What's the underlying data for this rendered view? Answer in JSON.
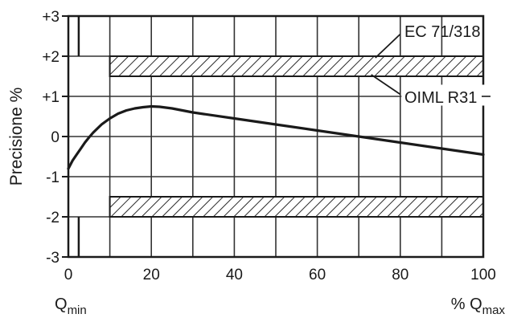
{
  "chart_data": {
    "type": "line",
    "xlabel_left": "Q",
    "xlabel_left_sub": "min",
    "xlabel_right_prefix": "% Q",
    "xlabel_right_sub": "max",
    "ylabel": "Precisione %",
    "xlim": [
      0,
      100
    ],
    "ylim": [
      -3,
      3
    ],
    "xticks": [
      0,
      20,
      40,
      60,
      80,
      100
    ],
    "xtick_labels": [
      "0",
      "20",
      "40",
      "60",
      "80",
      "100"
    ],
    "yticks": [
      3,
      2,
      1,
      0,
      -1,
      -2,
      -3
    ],
    "ytick_labels": [
      "+3",
      "+2",
      "+1",
      "0",
      "-1",
      "-2",
      "-3"
    ],
    "grid": true,
    "series": [
      {
        "x": [
          0,
          1,
          2,
          3,
          4,
          5,
          6,
          8,
          10,
          12,
          14,
          16,
          18,
          20,
          22,
          25,
          30,
          40,
          50,
          60,
          70,
          80,
          90,
          100
        ],
        "y": [
          -0.8,
          -0.6,
          -0.45,
          -0.3,
          -0.15,
          -0.02,
          0.1,
          0.3,
          0.45,
          0.57,
          0.65,
          0.7,
          0.73,
          0.75,
          0.74,
          0.7,
          0.6,
          0.45,
          0.3,
          0.15,
          0.0,
          -0.15,
          -0.3,
          -0.45
        ]
      }
    ],
    "bands": [
      {
        "x": [
          10,
          100
        ],
        "y": [
          1.5,
          2.0
        ]
      },
      {
        "x": [
          10,
          100
        ],
        "y": [
          -2.0,
          -1.5
        ]
      }
    ],
    "left_limit_lines": [
      {
        "x": 2.5,
        "y": [
          2,
          3
        ]
      },
      {
        "x": 2.5,
        "y": [
          -3,
          -2
        ]
      }
    ],
    "annotations": [
      {
        "text": "EC 71/318"
      },
      {
        "text": "OIML R31"
      }
    ]
  }
}
